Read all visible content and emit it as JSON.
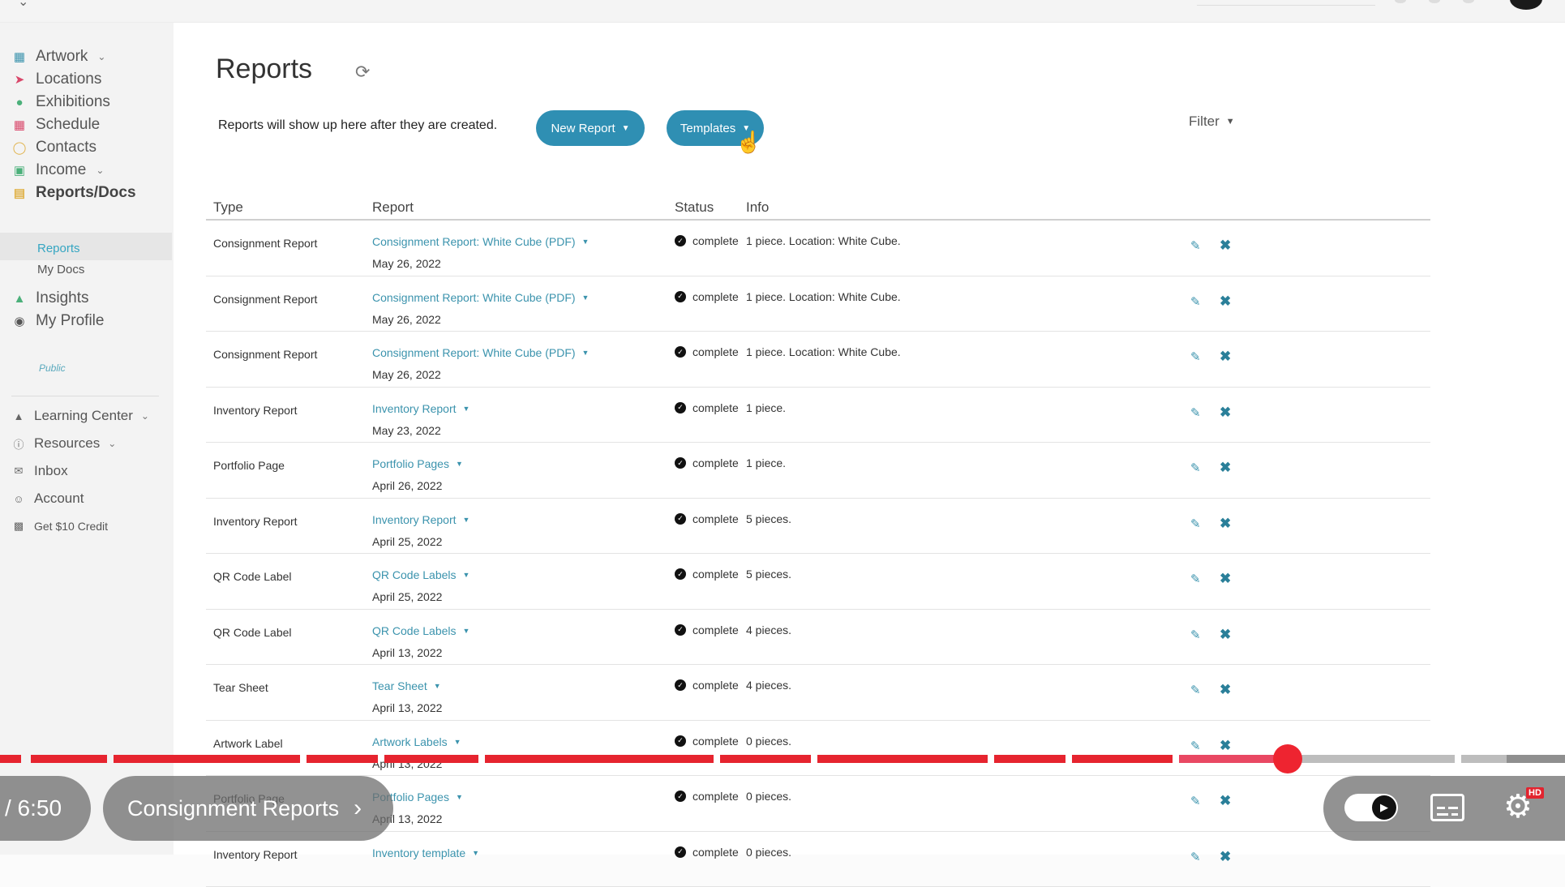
{
  "sidebar": {
    "items": [
      {
        "label": "Artwork",
        "icon": "image-icon",
        "caret": true
      },
      {
        "label": "Locations",
        "icon": "location-arrow-icon"
      },
      {
        "label": "Exhibitions",
        "icon": "map-pin-icon"
      },
      {
        "label": "Schedule",
        "icon": "calendar-icon"
      },
      {
        "label": "Contacts",
        "icon": "person-icon"
      },
      {
        "label": "Income",
        "icon": "money-icon",
        "caret": true
      },
      {
        "label": "Reports/Docs",
        "icon": "document-icon",
        "active": true
      },
      {
        "label": "Insights",
        "icon": "area-chart-icon"
      },
      {
        "label": "My Profile",
        "icon": "globe-icon"
      }
    ],
    "subitems": [
      {
        "label": "Reports",
        "active": true
      },
      {
        "label": "My Docs"
      }
    ],
    "profile_public": "Public",
    "secondary": [
      {
        "label": "Learning Center",
        "icon": "graduation-cap-icon",
        "caret": true
      },
      {
        "label": "Resources",
        "icon": "info-icon",
        "caret": true
      },
      {
        "label": "Inbox",
        "icon": "envelope-icon"
      },
      {
        "label": "Account",
        "icon": "user-circle-icon"
      },
      {
        "label": "Get $10 Credit",
        "icon": "gift-icon"
      }
    ]
  },
  "main": {
    "title": "Reports",
    "intro": "Reports will show up here after they are created.",
    "new_report_label": "New Report",
    "templates_label": "Templates",
    "filter_label": "Filter",
    "columns": {
      "type": "Type",
      "report": "Report",
      "status": "Status",
      "info": "Info"
    },
    "rows": [
      {
        "type": "Consignment Report",
        "report": "Consignment Report: White Cube (PDF)",
        "date": "May 26, 2022",
        "status": "complete",
        "info": "1 piece. Location: White Cube."
      },
      {
        "type": "Consignment Report",
        "report": "Consignment Report: White Cube (PDF)",
        "date": "May 26, 2022",
        "status": "complete",
        "info": "1 piece. Location: White Cube."
      },
      {
        "type": "Consignment Report",
        "report": "Consignment Report: White Cube (PDF)",
        "date": "May 26, 2022",
        "status": "complete",
        "info": "1 piece. Location: White Cube."
      },
      {
        "type": "Inventory Report",
        "report": "Inventory Report",
        "date": "May 23, 2022",
        "status": "complete",
        "info": "1 piece."
      },
      {
        "type": "Portfolio Page",
        "report": "Portfolio Pages",
        "date": "April 26, 2022",
        "status": "complete",
        "info": "1 piece."
      },
      {
        "type": "Inventory Report",
        "report": "Inventory Report",
        "date": "April 25, 2022",
        "status": "complete",
        "info": "5 pieces."
      },
      {
        "type": "QR Code Label",
        "report": "QR Code Labels",
        "date": "April 25, 2022",
        "status": "complete",
        "info": "5 pieces."
      },
      {
        "type": "QR Code Label",
        "report": "QR Code Labels",
        "date": "April 13, 2022",
        "status": "complete",
        "info": "4 pieces."
      },
      {
        "type": "Tear Sheet",
        "report": "Tear Sheet",
        "date": "April 13, 2022",
        "status": "complete",
        "info": "4 pieces."
      },
      {
        "type": "Artwork Label",
        "report": "Artwork Labels",
        "date": "April 13, 2022",
        "status": "complete",
        "info": "0 pieces."
      },
      {
        "type": "Portfolio Page",
        "report": "Portfolio Pages",
        "date": "April 13, 2022",
        "status": "complete",
        "info": "0 pieces."
      },
      {
        "type": "Inventory Report",
        "report": "Inventory template",
        "date": "",
        "status": "complete",
        "info": "0 pieces."
      }
    ]
  },
  "player": {
    "time": "/ 6:50",
    "chapter": "Consignment Reports",
    "progress_fraction": 0.82,
    "hd_badge": "HD",
    "colors": {
      "played": "#e6242f",
      "scrubber": "#ee2430",
      "accent_button": "#2f8fb3"
    }
  }
}
